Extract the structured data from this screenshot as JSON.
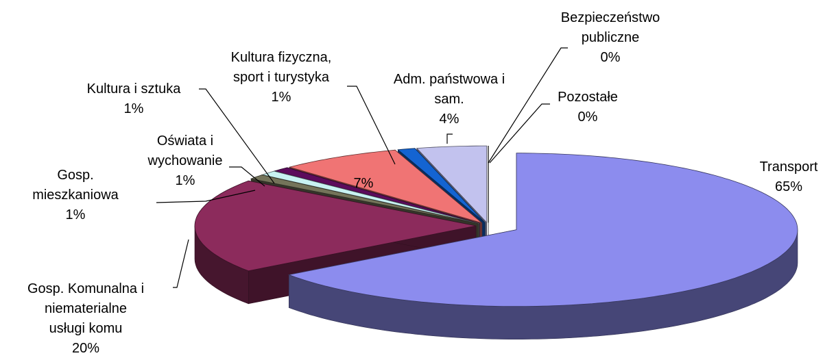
{
  "chart_data": {
    "type": "pie3d",
    "categories": [
      "Transport",
      "Gosp. Komunalna i\nniematerialne\nusługi komu",
      "Gosp.\nmieszkaniowa",
      "Oświata i\nwychowanie",
      "Kultura i sztuka",
      null,
      "Kultura fizyczna,\nsport i turystyka",
      "Adm. państwowa i\nsam.",
      "Bezpieczeństwo\npubliczne",
      "Pozostałe"
    ],
    "values": [
      65,
      20,
      1,
      1,
      1,
      7,
      1,
      4,
      0,
      0
    ],
    "value_labels": [
      "65%",
      "20%",
      "1%",
      "1%",
      "1%",
      "7%",
      "1%",
      "4%",
      "0%",
      "0%"
    ],
    "colors": [
      "#8c8cee",
      "#8c2b5c",
      "#74745a",
      "#c8f2f2",
      "#5c0c5c",
      "#f07474",
      "#1464d2",
      "#c2c2ee",
      "#24246a",
      "#ffffff"
    ]
  }
}
